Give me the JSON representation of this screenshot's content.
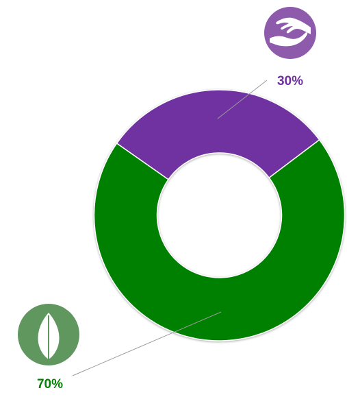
{
  "chart_data": {
    "type": "pie",
    "style": "donut",
    "title": "",
    "slices": [
      {
        "value": 30,
        "label": "30%",
        "color": "#7030a0",
        "icon": "hands-icon",
        "icon_color": "#8e5aac"
      },
      {
        "value": 70,
        "label": "70%",
        "color": "#008000",
        "icon": "leaf-icon",
        "icon_color": "#5f975f"
      }
    ],
    "legend": "none"
  }
}
